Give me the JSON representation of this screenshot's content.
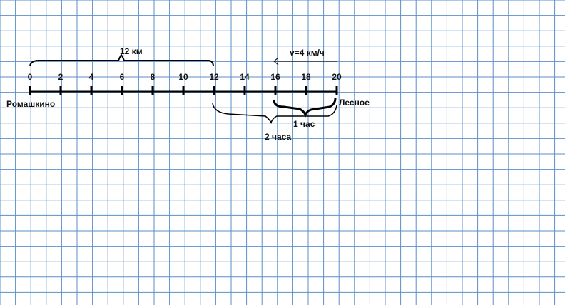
{
  "diagram": {
    "ticks": [
      "0",
      "2",
      "4",
      "6",
      "8",
      "10",
      "12",
      "14",
      "16",
      "18",
      "20"
    ],
    "tick_values": [
      0,
      2,
      4,
      6,
      8,
      10,
      12,
      14,
      16,
      18,
      20
    ],
    "start_label": "Ромашкино",
    "end_label": "Лесное",
    "distance_label": "12 км",
    "speed_label": "v=4 км/ч",
    "one_hour_label": "1 час",
    "two_hours_label": "2 часа",
    "grid_color": "#5b8fc7",
    "line_color": "#000000"
  }
}
